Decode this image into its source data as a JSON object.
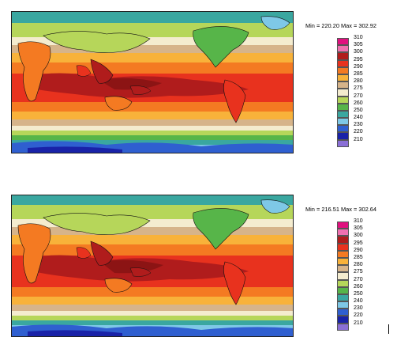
{
  "panels": [
    {
      "id": "top",
      "min_label": "Min = 220.20",
      "max_label": "Max = 302.92",
      "min": 220.2,
      "max": 302.92
    },
    {
      "id": "bottom",
      "min_label": "Min = 216.51",
      "max_label": "Max = 302.64",
      "min": 216.51,
      "max": 302.64
    }
  ],
  "legend": {
    "levels": [
      {
        "value": "310",
        "color": "#e0117f"
      },
      {
        "value": "305",
        "color": "#f070b0"
      },
      {
        "value": "300",
        "color": "#b01c1c"
      },
      {
        "value": "295",
        "color": "#e8321e"
      },
      {
        "value": "290",
        "color": "#f47a22"
      },
      {
        "value": "285",
        "color": "#f8b23a"
      },
      {
        "value": "280",
        "color": "#d6b48a"
      },
      {
        "value": "275",
        "color": "#f4eccf"
      },
      {
        "value": "270",
        "color": "#b6d65a"
      },
      {
        "value": "260",
        "color": "#57b549"
      },
      {
        "value": "250",
        "color": "#3aa7a0"
      },
      {
        "value": "240",
        "color": "#7ec8e6"
      },
      {
        "value": "230",
        "color": "#2f5fd0"
      },
      {
        "value": "220",
        "color": "#1922a8"
      },
      {
        "value": "210",
        "color": "#8a6fd6"
      }
    ]
  }
}
